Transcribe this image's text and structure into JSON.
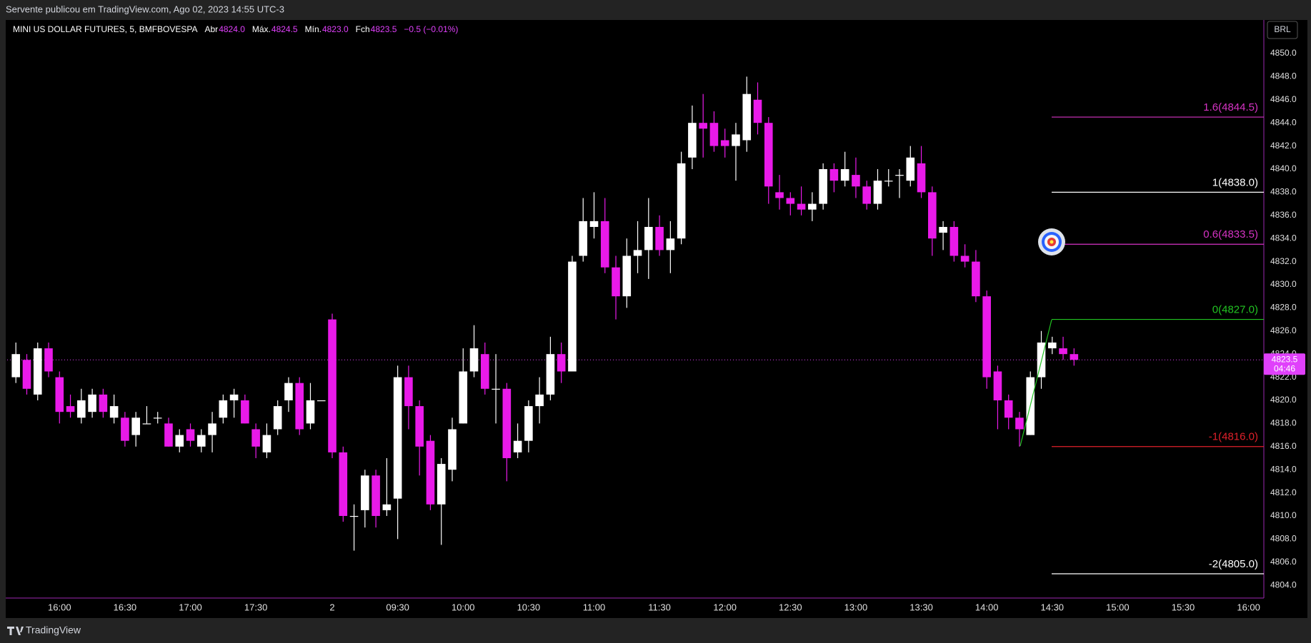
{
  "publisher": "Servente publicou em TradingView.com, Ago 02, 2023 14:55 UTC-3",
  "header": {
    "symbol": "MINI US DOLLAR FUTURES, 5, BMFBOVESPA",
    "fields": [
      {
        "name": "Abr",
        "value": "4824.0"
      },
      {
        "name": "Máx.",
        "value": "4824.5"
      },
      {
        "name": "Mín.",
        "value": "4823.0"
      },
      {
        "name": "Fch",
        "value": "4823.5"
      }
    ],
    "change": "−0.5 (−0.01%)"
  },
  "currency": "BRL",
  "brand": "TradingView",
  "chart_data": {
    "type": "candlestick",
    "up_color": "#ffffff",
    "down_color": "#e91ae9",
    "grid": false,
    "x": [
      0,
      1,
      2,
      3,
      4,
      5,
      6,
      7,
      8,
      9,
      10,
      11,
      12,
      13,
      14,
      15,
      16,
      17,
      18,
      19,
      20,
      21,
      22,
      23,
      24,
      25,
      26,
      27,
      28,
      29,
      30,
      31,
      32,
      33,
      34,
      35,
      36,
      37,
      38,
      39,
      40,
      41,
      42,
      43,
      44,
      45,
      46,
      47,
      48,
      49,
      50,
      51,
      52,
      53,
      54,
      55,
      56,
      57,
      58,
      59,
      60,
      61,
      62,
      63,
      64,
      65,
      66,
      67,
      68,
      69,
      70,
      71,
      72,
      73,
      74,
      75,
      76,
      77,
      78,
      79,
      80,
      81,
      82,
      83,
      84,
      85,
      86,
      87,
      88,
      89,
      90,
      91,
      92,
      93,
      94,
      95,
      96,
      97
    ],
    "open": [
      4822,
      4823.5,
      4820.5,
      4824.5,
      4822,
      4819.5,
      4818.5,
      4819,
      4820.5,
      4818.5,
      4818.5,
      4817,
      4818,
      4818.5,
      4818,
      4816,
      4817.5,
      4816,
      4817,
      4818.5,
      4820,
      4820,
      4817.5,
      4815.5,
      4817.5,
      4820,
      4821.5,
      4818,
      4820,
      4827,
      4815.5,
      4810,
      4810.5,
      4813.5,
      4810.5,
      4811.5,
      4822,
      4819.5,
      4816.5,
      4811,
      4814,
      4818,
      4822.5,
      4824,
      4821,
      4821,
      4815.5,
      4816.5,
      4819.5,
      4820.5,
      4824,
      4822.5,
      4832.5,
      4835,
      4835.5,
      4831.5,
      4829,
      4832.5,
      4833,
      4835,
      4833,
      4834,
      4841,
      4844,
      4844,
      4842.5,
      4842,
      4842.5,
      4846,
      4844,
      4838,
      4837.5,
      4837,
      4836.5,
      4837,
      4840,
      4839,
      4839.5,
      4838.5,
      4837,
      4839,
      4839.5,
      4839,
      4840.5,
      4838,
      4834.5,
      4835,
      4832.5,
      4832,
      4829,
      4822.5,
      4820,
      4818.5,
      4817,
      4822,
      4824.5,
      4824.5,
      4824
    ],
    "high": [
      4825,
      4824,
      4825,
      4825,
      4822.5,
      4820.5,
      4821,
      4821,
      4821,
      4820.5,
      4819,
      4819,
      4819.5,
      4819,
      4818.5,
      4817.5,
      4818,
      4817.5,
      4819,
      4820.5,
      4821,
      4820.5,
      4818,
      4818,
      4820,
      4822,
      4822,
      4821.5,
      4820,
      4827.5,
      4816,
      4811,
      4814,
      4814,
      4815,
      4823,
      4823,
      4820,
      4817,
      4815,
      4818.5,
      4824.5,
      4826.5,
      4825,
      4824,
      4821.5,
      4818,
      4820,
      4822,
      4825.5,
      4825,
      4832.5,
      4837.5,
      4838,
      4837.5,
      4832.5,
      4834,
      4835.5,
      4837.5,
      4836,
      4835.5,
      4841.5,
      4845.5,
      4846.5,
      4845,
      4843.5,
      4844,
      4848,
      4847.5,
      4844.5,
      4839.5,
      4838,
      4838.5,
      4838,
      4840.5,
      4840.5,
      4841.5,
      4841,
      4839,
      4840,
      4840,
      4840,
      4842,
      4842,
      4838.5,
      4835.5,
      4835.5,
      4833.5,
      4833,
      4829.5,
      4823,
      4820.5,
      4819,
      4822.5,
      4826,
      4825.5,
      4825.5,
      4824.5
    ],
    "low": [
      4821.5,
      4820.5,
      4820,
      4822,
      4818,
      4818.5,
      4818,
      4818.5,
      4818.5,
      4818,
      4816,
      4816,
      4818,
      4818,
      4816,
      4815.5,
      4816,
      4815.5,
      4815.5,
      4818,
      4818.5,
      4818,
      4815,
      4815,
      4817,
      4819,
      4817,
      4817.5,
      4820,
      4815,
      4809.5,
      4807,
      4809,
      4809,
      4810,
      4808,
      4817.5,
      4813.5,
      4810.5,
      4807.5,
      4813,
      4818,
      4822,
      4820.5,
      4818,
      4813,
      4815,
      4815.5,
      4818,
      4820,
      4821.5,
      4822.5,
      4832,
      4834,
      4831,
      4827,
      4828,
      4831,
      4830.5,
      4832.5,
      4831,
      4833.5,
      4840,
      4841,
      4841.5,
      4841,
      4839,
      4841.5,
      4843,
      4837,
      4836.5,
      4836,
      4836,
      4835.5,
      4836.5,
      4838,
      4838.5,
      4837.5,
      4836.5,
      4836.5,
      4838.5,
      4837.5,
      4838.5,
      4837.5,
      4832.5,
      4833,
      4832,
      4831.5,
      4828.5,
      4821,
      4817.5,
      4817.5,
      4816,
      4817,
      4821,
      4824,
      4823.5,
      4823
    ],
    "close": [
      4824,
      4821,
      4824.5,
      4822.5,
      4819,
      4819,
      4820,
      4820.5,
      4819,
      4819.5,
      4816.5,
      4818.5,
      4818,
      4818.5,
      4816,
      4817,
      4816.5,
      4817,
      4818,
      4820,
      4820.5,
      4818,
      4816,
      4817,
      4819.5,
      4821.5,
      4817.5,
      4820,
      4820,
      4815.5,
      4810,
      4810,
      4813.5,
      4810,
      4811,
      4822,
      4819.5,
      4816,
      4811,
      4814.5,
      4817.5,
      4822.5,
      4824.5,
      4821,
      4821,
      4815,
      4816.5,
      4819.5,
      4820.5,
      4824,
      4822.5,
      4832,
      4835.5,
      4835.5,
      4831.5,
      4829,
      4832.5,
      4833,
      4835,
      4833,
      4834,
      4840.5,
      4844,
      4843.5,
      4842,
      4842,
      4843,
      4846.5,
      4844,
      4838.5,
      4837.5,
      4837,
      4836.5,
      4837,
      4840,
      4839,
      4840,
      4838.5,
      4837,
      4839,
      4839,
      4839.5,
      4841,
      4838,
      4834,
      4835,
      4832.5,
      4832,
      4829,
      4822,
      4820,
      4818.5,
      4817.5,
      4822,
      4825,
      4825,
      4824,
      4823.5
    ],
    "xlim": [
      -0.8,
      114.4
    ],
    "xticks": [
      {
        "value": 4,
        "label": "16:00"
      },
      {
        "value": 10,
        "label": "16:30"
      },
      {
        "value": 16,
        "label": "17:00"
      },
      {
        "value": 22,
        "label": "17:30"
      },
      {
        "value": 29,
        "label": "2"
      },
      {
        "value": 35,
        "label": "09:30"
      },
      {
        "value": 41,
        "label": "10:00"
      },
      {
        "value": 47,
        "label": "10:30"
      },
      {
        "value": 53,
        "label": "11:00"
      },
      {
        "value": 59,
        "label": "11:30"
      },
      {
        "value": 65,
        "label": "12:00"
      },
      {
        "value": 71,
        "label": "12:30"
      },
      {
        "value": 77,
        "label": "13:00"
      },
      {
        "value": 83,
        "label": "13:30"
      },
      {
        "value": 89,
        "label": "14:00"
      },
      {
        "value": 95,
        "label": "14:30"
      },
      {
        "value": 101,
        "label": "15:00"
      },
      {
        "value": 107,
        "label": "15:30"
      },
      {
        "value": 113,
        "label": "16:00"
      }
    ],
    "ylim": [
      4802.9,
      4852.9
    ],
    "yticks": [
      {
        "value": 4804,
        "label": "4804.0"
      },
      {
        "value": 4806,
        "label": "4806.0"
      },
      {
        "value": 4808,
        "label": "4808.0"
      },
      {
        "value": 4810,
        "label": "4810.0"
      },
      {
        "value": 4812,
        "label": "4812.0"
      },
      {
        "value": 4814,
        "label": "4814.0"
      },
      {
        "value": 4816,
        "label": "4816.0"
      },
      {
        "value": 4818,
        "label": "4818.0"
      },
      {
        "value": 4820,
        "label": "4820.0"
      },
      {
        "value": 4822,
        "label": "4822.0"
      },
      {
        "value": 4824,
        "label": "4824.0"
      },
      {
        "value": 4826,
        "label": "4826.0"
      },
      {
        "value": 4828,
        "label": "4828.0"
      },
      {
        "value": 4830,
        "label": "4830.0"
      },
      {
        "value": 4832,
        "label": "4832.0"
      },
      {
        "value": 4834,
        "label": "4834.0"
      },
      {
        "value": 4836,
        "label": "4836.0"
      },
      {
        "value": 4838,
        "label": "4838.0"
      },
      {
        "value": 4840,
        "label": "4840.0"
      },
      {
        "value": 4842,
        "label": "4842.0"
      },
      {
        "value": 4844,
        "label": "4844.0"
      },
      {
        "value": 4846,
        "label": "4846.0"
      },
      {
        "value": 4848,
        "label": "4848.0"
      },
      {
        "value": 4850,
        "label": "4850.0"
      }
    ],
    "fib_levels": [
      {
        "label": "1.6(4844.5)",
        "value": 4844.5,
        "color": "#d633c4"
      },
      {
        "label": "1(4838.0)",
        "value": 4838.0,
        "color": "#ffffff"
      },
      {
        "label": "0.6(4833.5)",
        "value": 4833.5,
        "color": "#d633c4"
      },
      {
        "label": "0(4827.0)",
        "value": 4827.0,
        "color": "#22c322"
      },
      {
        "label": "-1(4816.0)",
        "value": 4816.0,
        "color": "#e0202a"
      },
      {
        "label": "-2(4805.0)",
        "value": 4805.0,
        "color": "#ffffff"
      }
    ],
    "price_line": {
      "value": 4823.5,
      "label": "4823.5",
      "countdown": "04:46",
      "color": "#e040fb"
    }
  }
}
